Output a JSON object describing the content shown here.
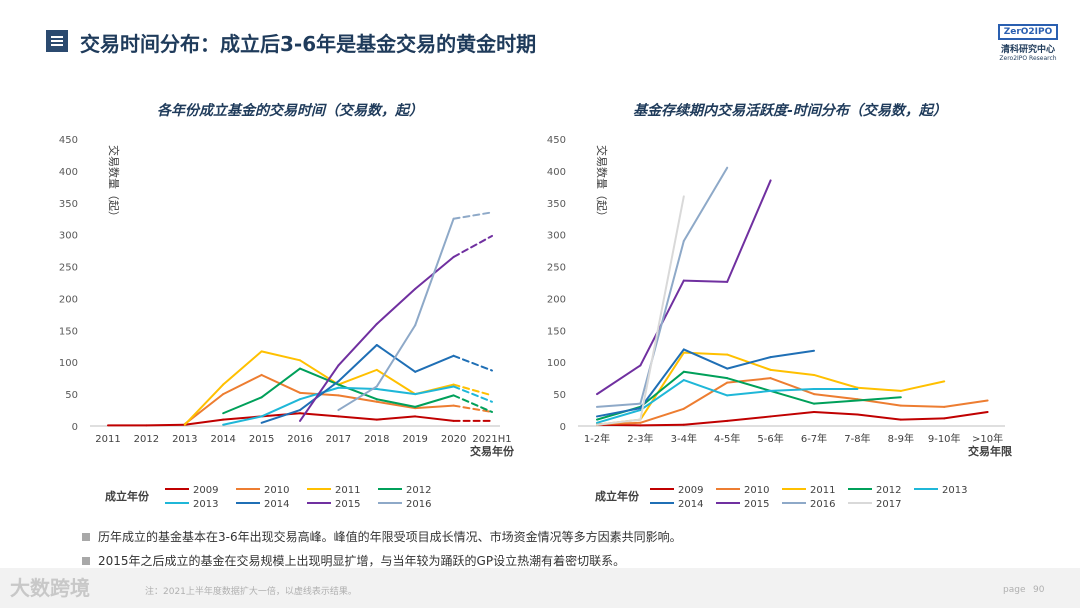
{
  "header": {
    "title": "交易时间分布：成立后3-6年是基金交易的黄金时期"
  },
  "logo": {
    "box_text": "ZerO2IPO",
    "cn": "清科研究中心",
    "en": "Zero2IPO Research"
  },
  "colors": {
    "2009": "#c00000",
    "2010": "#ed7d31",
    "2011": "#ffc000",
    "2012": "#00a05a",
    "2013": "#1fb7d8",
    "2014": "#1f6fb5",
    "2015": "#7030a0",
    "2016": "#8ea9c8",
    "2017": "#d9d9d9"
  },
  "chart_data": [
    {
      "type": "line",
      "title": "各年份成立基金的交易时间（交易数，起）",
      "xlabel": "交易年份",
      "ylabel": "交易数量（起）",
      "legend_title": "成立年份",
      "ylim": [
        0,
        450
      ],
      "yticks": [
        "0",
        "50",
        "100",
        "150",
        "200",
        "250",
        "300",
        "350",
        "400",
        "450"
      ],
      "categories": [
        "2011",
        "2012",
        "2013",
        "2014",
        "2015",
        "2016",
        "2017",
        "2018",
        "2019",
        "2020",
        "2021H1"
      ],
      "dashed_from_index": 9,
      "series": [
        {
          "name": "2009",
          "values": [
            1,
            1,
            2,
            10,
            15,
            20,
            15,
            10,
            15,
            8,
            8
          ]
        },
        {
          "name": "2010",
          "values": [
            null,
            null,
            3,
            50,
            80,
            52,
            48,
            38,
            28,
            32,
            22
          ]
        },
        {
          "name": "2011",
          "values": [
            null,
            null,
            2,
            65,
            117,
            103,
            65,
            88,
            50,
            65,
            48
          ]
        },
        {
          "name": "2012",
          "values": [
            null,
            null,
            null,
            20,
            45,
            90,
            65,
            42,
            30,
            48,
            22
          ]
        },
        {
          "name": "2013",
          "values": [
            null,
            null,
            null,
            2,
            15,
            42,
            60,
            58,
            50,
            62,
            38
          ]
        },
        {
          "name": "2014",
          "values": [
            null,
            null,
            null,
            null,
            5,
            25,
            70,
            127,
            85,
            110,
            87
          ]
        },
        {
          "name": "2015",
          "values": [
            null,
            null,
            null,
            null,
            null,
            8,
            95,
            160,
            215,
            265,
            298
          ]
        },
        {
          "name": "2016",
          "values": [
            null,
            null,
            null,
            null,
            null,
            null,
            25,
            62,
            158,
            325,
            335
          ]
        }
      ]
    },
    {
      "type": "line",
      "title": "基金存续期内交易活跃度-时间分布（交易数，起）",
      "xlabel": "交易年限",
      "ylabel": "交易数量（起）",
      "legend_title": "成立年份",
      "ylim": [
        0,
        450
      ],
      "yticks": [
        "0",
        "50",
        "100",
        "150",
        "200",
        "250",
        "300",
        "350",
        "400",
        "450"
      ],
      "categories": [
        "1-2年",
        "2-3年",
        "3-4年",
        "4-5年",
        "5-6年",
        "6-7年",
        "7-8年",
        "8-9年",
        "9-10年",
        ">10年"
      ],
      "series": [
        {
          "name": "2009",
          "values": [
            2,
            1,
            2,
            8,
            15,
            22,
            18,
            10,
            12,
            22
          ]
        },
        {
          "name": "2010",
          "values": [
            3,
            5,
            27,
            68,
            75,
            50,
            42,
            32,
            30,
            40
          ]
        },
        {
          "name": "2011",
          "values": [
            2,
            10,
            115,
            112,
            88,
            80,
            60,
            55,
            70,
            null
          ]
        },
        {
          "name": "2012",
          "values": [
            10,
            30,
            85,
            75,
            55,
            35,
            40,
            45,
            null,
            null
          ]
        },
        {
          "name": "2013",
          "values": [
            5,
            25,
            72,
            48,
            55,
            58,
            58,
            null,
            null,
            null
          ]
        },
        {
          "name": "2014",
          "values": [
            15,
            28,
            120,
            90,
            108,
            118,
            null,
            null,
            null,
            null
          ]
        },
        {
          "name": "2015",
          "values": [
            50,
            95,
            228,
            226,
            385,
            null,
            null,
            null,
            null,
            null
          ]
        },
        {
          "name": "2016",
          "values": [
            30,
            35,
            290,
            405,
            null,
            null,
            null,
            null,
            null,
            null
          ]
        },
        {
          "name": "2017",
          "values": [
            2,
            10,
            360,
            null,
            null,
            null,
            null,
            null,
            null,
            null
          ]
        }
      ]
    }
  ],
  "bullets": [
    "历年成立的基金基本在3-6年出现交易高峰。峰值的年限受项目成长情况、市场资金情况等多方因素共同影响。",
    "2015年之后成立的基金在交易规模上出现明显扩增，与当年较为踊跃的GP设立热潮有着密切联系。"
  ],
  "footer": {
    "watermark": "大数跨境",
    "note": "注：2021上半年度数据扩大一倍，以虚线表示结果。",
    "page_label": "page",
    "page_num": "90"
  }
}
